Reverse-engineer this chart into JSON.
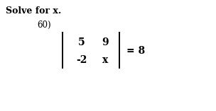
{
  "title": "Solve for x.",
  "problem_number": "60)",
  "matrix_entries": [
    [
      "5",
      "9"
    ],
    [
      "-2",
      "x"
    ]
  ],
  "rhs": "= 8",
  "bg_color": "#ffffff",
  "text_color": "#000000",
  "title_fontsize": 9,
  "number_fontsize": 8.5,
  "matrix_fontsize": 10,
  "rhs_fontsize": 10,
  "bar_linewidth": 1.4,
  "figsize": [
    3.04,
    1.57
  ],
  "dpi": 100
}
